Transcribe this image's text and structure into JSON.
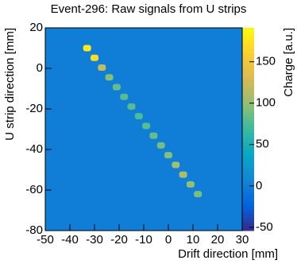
{
  "chart_data": {
    "type": "heatmap",
    "title": "Event-296: Raw signals from U strips",
    "xlabel": "Drift direction [mm]",
    "ylabel": "U strip direction [mm]",
    "zlabel": "Charge [a.u.]",
    "xlim": [
      -50,
      30
    ],
    "ylim": [
      -80,
      20
    ],
    "zlim": [
      -54,
      191
    ],
    "xticks": [
      -50,
      -40,
      -30,
      -20,
      -10,
      0,
      10,
      20,
      30
    ],
    "yticks": [
      -80,
      -60,
      -40,
      -20,
      0,
      20
    ],
    "zticks": [
      -50,
      0,
      50,
      100,
      150
    ],
    "colormap": [
      "#352a87",
      "#0363e1",
      "#1485d4",
      "#06a7c6",
      "#38b99e",
      "#92bf73",
      "#d9ba56",
      "#fcce2e",
      "#f9fb0e"
    ],
    "background": 0,
    "x": [
      -33,
      -30,
      -27,
      -24,
      -21,
      -18,
      -15,
      -12,
      -9,
      -6,
      -3,
      0,
      3,
      6,
      9,
      12
    ],
    "y": [
      10,
      5.2,
      0.4,
      -4.4,
      -9.2,
      -14,
      -18.8,
      -23.6,
      -28.4,
      -33.2,
      -38,
      -42.8,
      -47.6,
      -52.4,
      -57.2,
      -62
    ],
    "values": [
      180,
      170,
      120,
      95,
      85,
      80,
      80,
      75,
      80,
      85,
      90,
      95,
      105,
      110,
      100,
      90
    ]
  }
}
